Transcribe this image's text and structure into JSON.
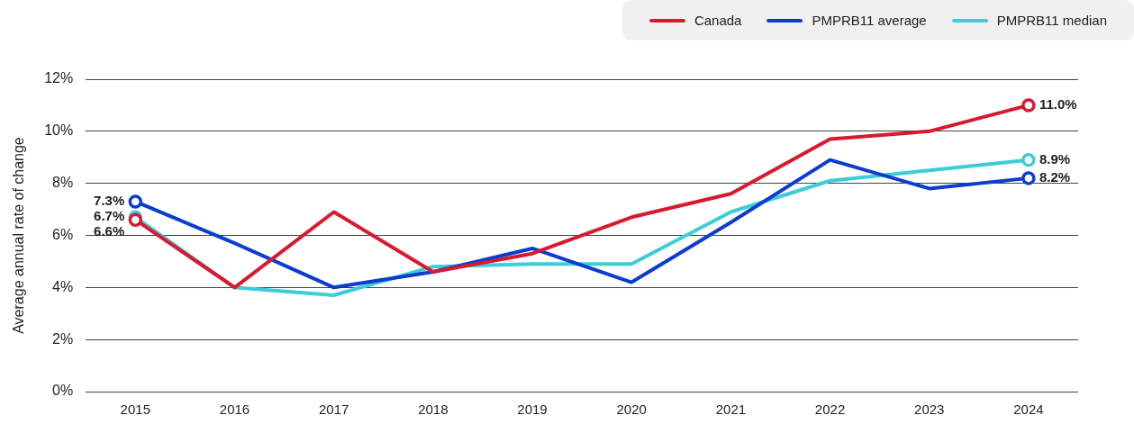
{
  "chart_data": {
    "type": "line",
    "ylabel": "Average annual rate of change",
    "categories": [
      "2015",
      "2016",
      "2017",
      "2018",
      "2019",
      "2020",
      "2021",
      "2022",
      "2023",
      "2024"
    ],
    "series": [
      {
        "name": "Canada",
        "color": "#d71a30",
        "values": [
          6.6,
          4.0,
          6.9,
          4.6,
          5.3,
          6.7,
          7.6,
          9.7,
          10.0,
          11.0
        ],
        "value_labels": [
          "6.6%",
          null,
          null,
          null,
          null,
          null,
          null,
          null,
          null,
          "11.0%"
        ]
      },
      {
        "name": "PMPRB11 average",
        "color": "#0a3dd0",
        "values": [
          7.3,
          5.7,
          4.0,
          4.6,
          5.5,
          4.2,
          6.5,
          8.9,
          7.8,
          8.2
        ],
        "value_labels": [
          "7.3%",
          null,
          null,
          null,
          null,
          null,
          null,
          null,
          null,
          "8.2%"
        ]
      },
      {
        "name": "PMPRB11 median",
        "color": "#3ccdd8",
        "values": [
          6.7,
          4.0,
          3.7,
          4.8,
          4.9,
          4.9,
          6.9,
          8.1,
          8.5,
          8.9
        ],
        "value_labels": [
          "6.7%",
          null,
          null,
          null,
          null,
          null,
          null,
          null,
          null,
          "8.9%"
        ]
      }
    ],
    "ylim": [
      0,
      12
    ],
    "yticks": [
      {
        "value": 0,
        "label": "0%"
      },
      {
        "value": 2,
        "label": "2%"
      },
      {
        "value": 4,
        "label": "4%"
      },
      {
        "value": 6,
        "label": "6%"
      },
      {
        "value": 8,
        "label": "8%"
      },
      {
        "value": 10,
        "label": "10%"
      },
      {
        "value": 12,
        "label": "12%"
      }
    ],
    "grid": "y",
    "legend": "top right",
    "line_style": "solid"
  }
}
